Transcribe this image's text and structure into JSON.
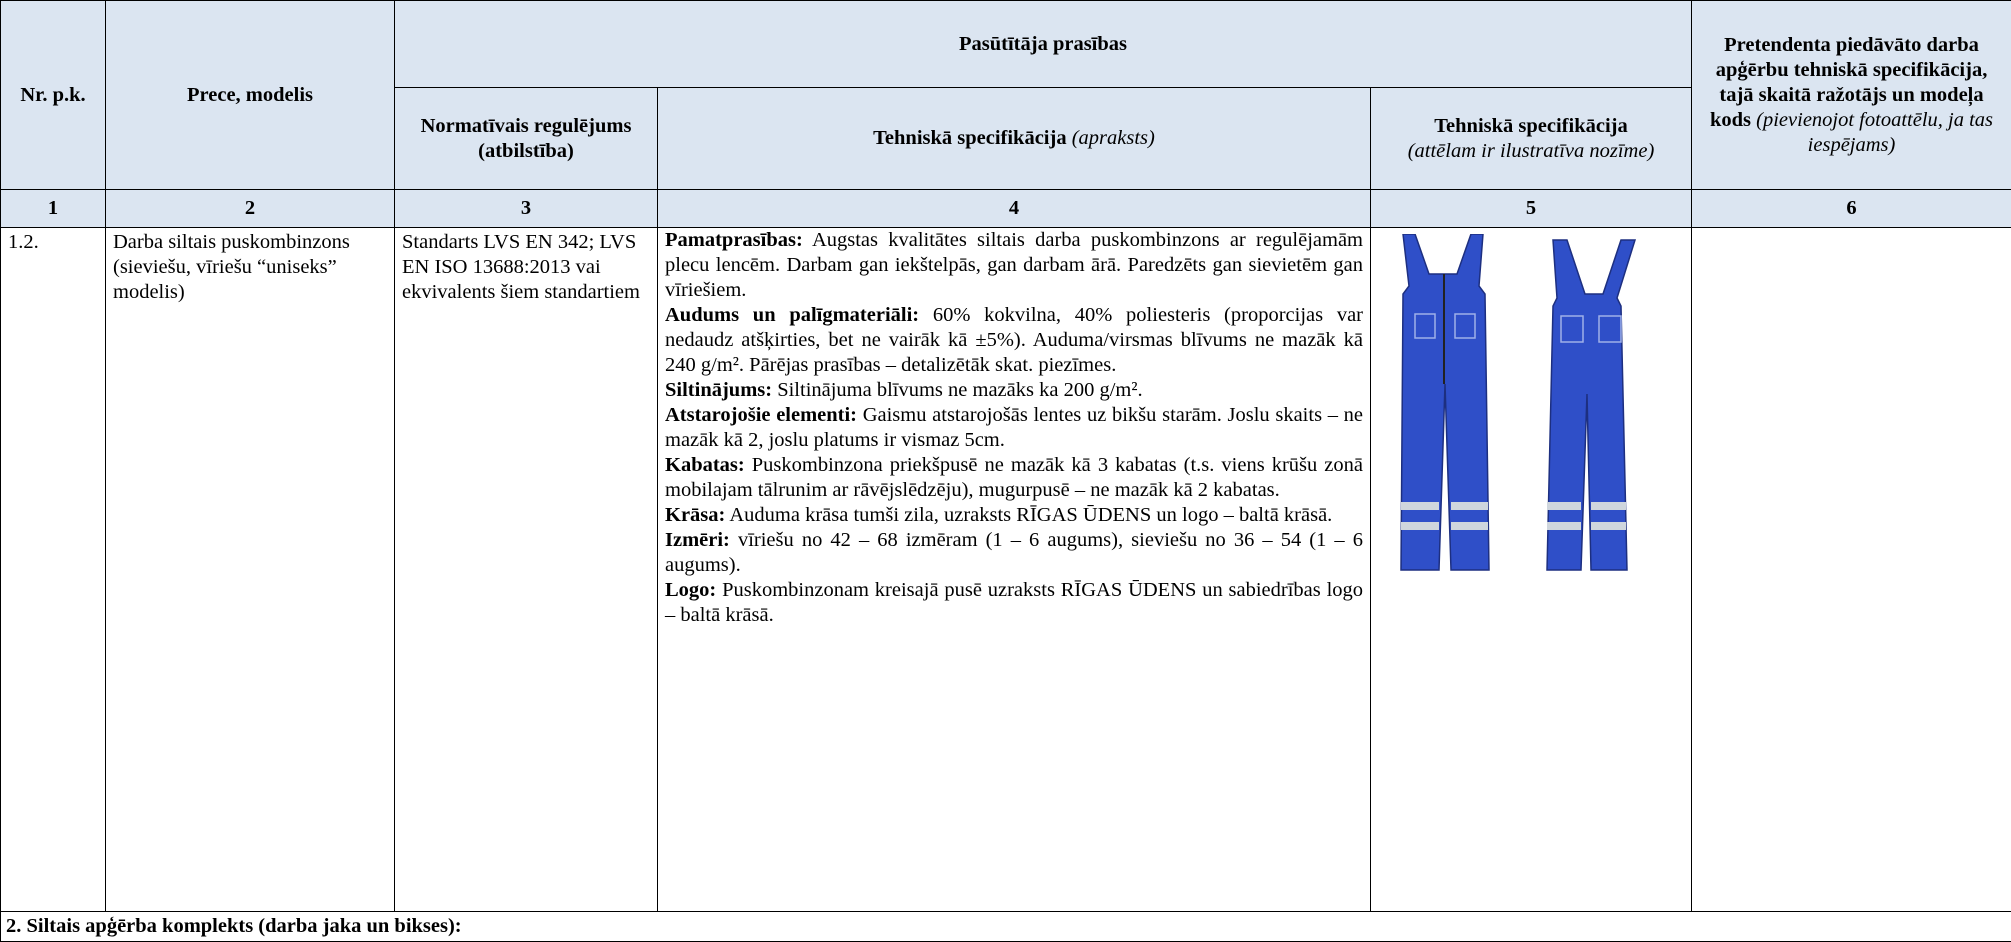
{
  "table": {
    "header": {
      "nr": "Nr. p.k.",
      "product": "Prece, modelis",
      "group": "Pasūtītāja prasības",
      "regulation": "Normatīvais regulējums (atbilstība)",
      "spec_title": "Tehniskā specifikācija",
      "spec_note": "(apraksts)",
      "image_title": "Tehniskā specifikācija",
      "image_note": "(attēlam ir ilustratīva nozīme)",
      "offer_title": "Pretendenta piedāvāto darba apģērbu tehniskā specifikācija, tajā skaitā ražotājs un modeļa kods",
      "offer_note": "(pievienojot fotoattēlu, ja tas iespējams)"
    },
    "numbers": [
      "1",
      "2",
      "3",
      "4",
      "5",
      "6"
    ],
    "rows": [
      {
        "nr": "1.2.",
        "product": "Darba siltais puskombinzons",
        "product_note": "(sieviešu, vīriešu “uniseks” modelis)",
        "regulation": "Standarts LVS EN 342; LVS EN ISO 13688:2013 vai ekvivalents šiem standartiem",
        "spec": [
          {
            "label": "Pamatprasības:",
            "text": "Augstas kvalitātes siltais darba puskombinzons ar regulējamām plecu lencēm. Darbam gan iekštelpās, gan darbam ārā. Paredzēts gan sievietēm gan vīriešiem."
          },
          {
            "label": "Audums un palīgmateriāli:",
            "text": "60% kokvilna, 40% poliesteris (proporcijas var nedaudz atšķirties, bet ne vairāk kā ±5%). Auduma/virsmas blīvums ne mazāk kā 240 g/m². Pārējas prasības – detalizētāk skat. piezīmes."
          },
          {
            "label": "Siltinājums:",
            "text": "Siltinājuma blīvums ne mazāks ka 200 g/m²."
          },
          {
            "label": "Atstarojošie elementi:",
            "text": "Gaismu atstarojošās lentes uz bikšu starām. Joslu skaits – ne mazāk kā 2, joslu platums ir vismaz 5cm."
          },
          {
            "label": "Kabatas:",
            "text": "Puskombinzona priekšpusē ne mazāk kā 3 kabatas (t.s. viens krūšu zonā mobilajam tālrunim  ar rāvējslēdzēju), mugurpusē – ne mazāk kā 2 kabatas."
          },
          {
            "label": "Krāsa:",
            "text": "Auduma krāsa tumši zila, uzraksts RĪGAS ŪDENS un logo – baltā krāsā."
          },
          {
            "label": "Izmēri:",
            "text": "vīriešu no 42 – 68 izmēram (1 – 6 augums), sieviešu no 36 – 54 (1 – 6 augums)."
          },
          {
            "label": "Logo:",
            "text": "Puskombinzonam kreisajā pusē uzraksts RĪGAS ŪDENS un sabiedrības logo – baltā krāsā."
          }
        ]
      }
    ],
    "section": "2. Siltais apģērba komplekts (darba jaka un bikses):"
  }
}
